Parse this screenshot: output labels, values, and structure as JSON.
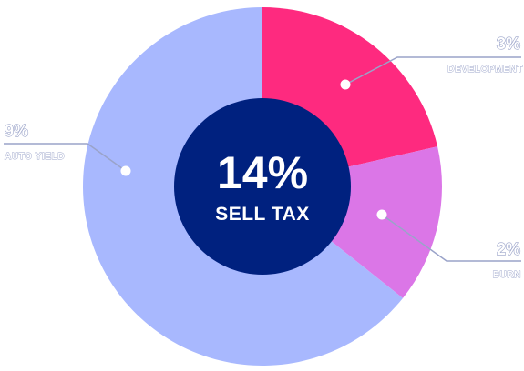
{
  "chart_data": {
    "type": "pie",
    "total": {
      "value": "14%",
      "label": "SELL TAX"
    },
    "slices": [
      {
        "label": "DEVELOPMENT",
        "value": 3,
        "display": "3%",
        "color": "#fe2a7f"
      },
      {
        "label": "BURN",
        "value": 2,
        "display": "2%",
        "color": "#db76e7"
      },
      {
        "label": "AUTO YIELD",
        "value": 9,
        "display": "9%",
        "color": "#a8b8fe"
      }
    ],
    "center_color": "#00217f",
    "leader_color": "#9aa3c9"
  }
}
